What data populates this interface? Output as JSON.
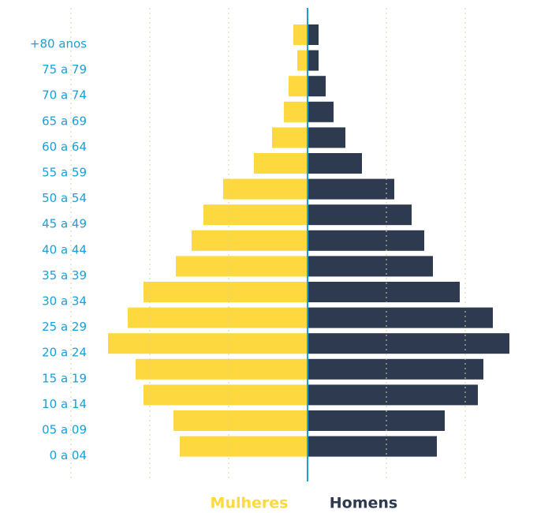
{
  "chart_data": {
    "type": "pyramid",
    "categories": [
      "+80 anos",
      "75 a 79",
      "70 a 74",
      "65 a 69",
      "60 a 64",
      "55 a 59",
      "50 a 54",
      "45 a 49",
      "40 a 44",
      "35 a 39",
      "30 a 34",
      "25 a 29",
      "20 a 24",
      "15 a 19",
      "10 a 14",
      "05 a 09",
      "0 a 04"
    ],
    "series": [
      {
        "name": "Mulheres",
        "color": "#fdd93f",
        "side": "left",
        "values": [
          0.18,
          0.13,
          0.24,
          0.3,
          0.45,
          0.68,
          1.07,
          1.32,
          1.47,
          1.67,
          2.08,
          2.28,
          2.53,
          2.18,
          2.08,
          1.7,
          1.62
        ]
      },
      {
        "name": "Homens",
        "color": "#2e3a4f",
        "side": "right",
        "values": [
          0.13,
          0.13,
          0.22,
          0.32,
          0.47,
          0.68,
          1.09,
          1.31,
          1.47,
          1.58,
          1.92,
          2.34,
          2.55,
          2.22,
          2.15,
          1.73,
          1.63
        ]
      }
    ],
    "xlim": [
      -3,
      3
    ],
    "xticks": [
      -3,
      -2,
      -1,
      0,
      1,
      2,
      3
    ],
    "grid": true,
    "axis_color": "#1a9fd6",
    "label_color": "#1a9fd6"
  }
}
